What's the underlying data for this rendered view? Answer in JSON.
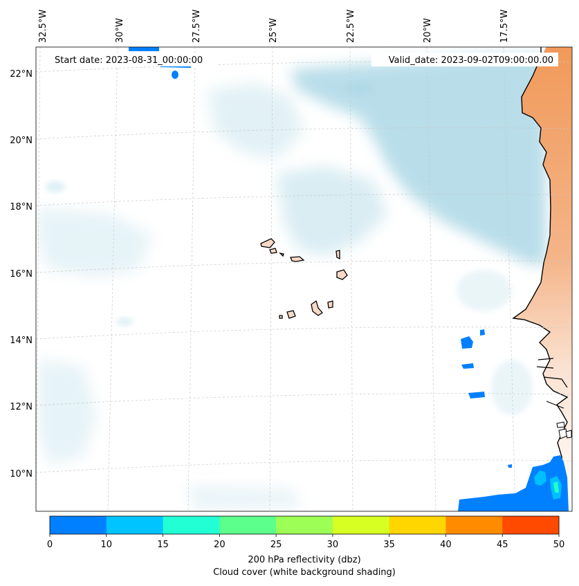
{
  "map": {
    "start_label": "Start date: 2023-08-31_00:00:00",
    "valid_label": "Valid_date: 2023-09-02T09:00:00.00",
    "lon_labels": [
      "32.5°W",
      "30°W",
      "27.5°W",
      "25°W",
      "22.5°W",
      "20°W",
      "17.5°W"
    ],
    "lat_labels": [
      "22°N",
      "20°N",
      "18°N",
      "16°N",
      "14°N",
      "12°N",
      "10°N"
    ],
    "colors": {
      "land_africa": "#f3a46a",
      "land_islands": "#f6d9c6",
      "cloud": "#add8e6",
      "coast": "#000000",
      "refl_base": "#0080ff",
      "refl_light": "#00bfff",
      "refl_cyan": "#22ffcc"
    }
  },
  "colorbar": {
    "ticks": [
      "0",
      "10",
      "15",
      "20",
      "25",
      "30",
      "35",
      "40",
      "45",
      "50"
    ],
    "colors": [
      "#0080ff",
      "#00c4ff",
      "#22ffd4",
      "#5cff8c",
      "#9dff55",
      "#d7ff22",
      "#ffd600",
      "#ff8c00",
      "#ff4a00"
    ],
    "label_line1": "200 hPa reflectivity (dbz)",
    "label_line2": "Cloud cover (white background shading)"
  }
}
